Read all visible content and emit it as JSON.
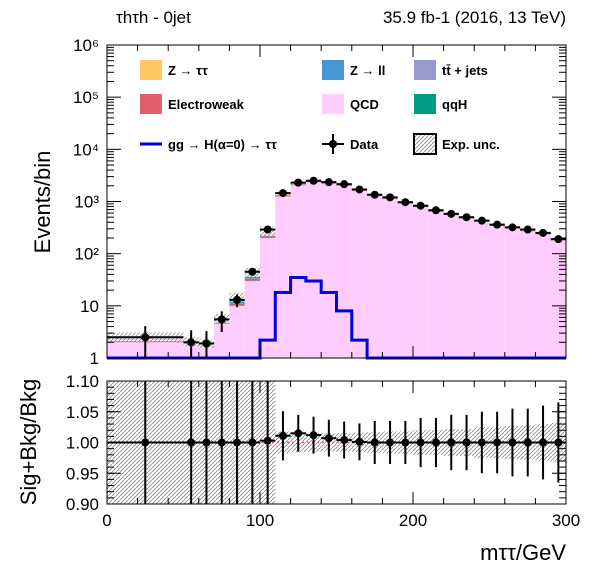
{
  "header": {
    "channel": "τhτh - 0jet",
    "lumi": "35.9 fb-1 (2016, 13 TeV)"
  },
  "colors": {
    "ztt": "#fdc965",
    "zll": "#4596d2",
    "ttbar": "#9a99cc",
    "ewk": "#df5d6d",
    "qcd": "#ffccff",
    "qqh": "#009a82",
    "signal": "#0000d8",
    "data": "#000000",
    "unc": "#c8c8c8"
  },
  "chart_data": [
    {
      "type": "bar",
      "panel": "main",
      "y_scale": "log",
      "ylim": [
        1,
        1000000
      ],
      "xlim": [
        0,
        300
      ],
      "ylabel": "Events/bin",
      "y_tick_labels": [
        "1",
        "10",
        "10²",
        "10³",
        "10⁴",
        "10⁵",
        "10⁶"
      ],
      "x_edges": [
        0,
        50,
        60,
        70,
        80,
        90,
        100,
        110,
        120,
        130,
        140,
        150,
        160,
        170,
        180,
        190,
        200,
        210,
        220,
        230,
        240,
        250,
        260,
        270,
        280,
        290,
        300
      ],
      "stack": [
        {
          "name": "QCD",
          "key": "qcd",
          "values": [
            2.0,
            1.7,
            1.6,
            4.5,
            10,
            30,
            200,
            1250,
            2050,
            2350,
            2200,
            2000,
            1600,
            1280,
            1120,
            920,
            790,
            630,
            550,
            470,
            410,
            340,
            300,
            270,
            230,
            180
          ]
        },
        {
          "name": "Electroweak",
          "key": "ewk",
          "values": [
            0.2,
            0.1,
            0.1,
            0.3,
            1,
            3,
            15,
            40,
            60,
            60,
            55,
            50,
            40,
            35,
            30,
            25,
            20,
            16,
            14,
            12,
            10,
            9,
            8,
            7,
            6,
            5
          ]
        },
        {
          "name": "Z → ll",
          "key": "zll",
          "values": [
            0.3,
            0.2,
            0.1,
            0.3,
            1.5,
            4,
            10,
            20,
            15,
            12,
            8,
            6,
            5,
            4,
            3,
            3,
            2,
            2,
            2,
            1,
            1,
            1,
            1,
            1,
            1,
            1
          ]
        },
        {
          "name": "tt̄ + jets",
          "key": "ttbar",
          "values": [
            0,
            0,
            0,
            0.2,
            0.5,
            2,
            10,
            30,
            35,
            35,
            30,
            25,
            20,
            15,
            12,
            10,
            8,
            6,
            5,
            4,
            3,
            3,
            2,
            2,
            2,
            1
          ]
        },
        {
          "name": "Z → ττ",
          "key": "ztt",
          "values": [
            0.1,
            0.1,
            0.1,
            0.5,
            2,
            6,
            40,
            150,
            150,
            100,
            60,
            40,
            25,
            15,
            10,
            7,
            5,
            4,
            3,
            2,
            2,
            1,
            1,
            1,
            1,
            1
          ]
        },
        {
          "name": "qqH",
          "key": "qqh",
          "values": [
            0,
            0,
            0,
            0,
            0,
            0,
            0,
            1,
            1,
            1,
            0,
            0,
            0,
            0,
            0,
            0,
            0,
            0,
            0,
            0,
            0,
            0,
            0,
            0,
            0,
            0
          ]
        }
      ],
      "signal": {
        "name": "gg → H(α=0) → ττ",
        "key": "signal",
        "values": [
          0,
          0,
          0,
          0,
          0,
          0,
          2.2,
          18,
          35,
          30,
          18,
          8,
          2.2,
          0.9,
          0.9,
          0.9,
          0.9,
          0.9,
          0.9,
          0.9,
          0.9,
          0.9,
          0.9,
          0.9,
          0.9,
          0.9
        ]
      },
      "data": {
        "name": "Data",
        "key": "data",
        "x": [
          25,
          55,
          65,
          75,
          85,
          95,
          105,
          115,
          125,
          135,
          145,
          155,
          165,
          175,
          185,
          195,
          205,
          215,
          225,
          235,
          245,
          255,
          265,
          275,
          285,
          295
        ],
        "y": [
          2.5,
          2.0,
          1.9,
          5.5,
          13,
          45,
          290,
          1450,
          2300,
          2500,
          2350,
          2150,
          1700,
          1350,
          1200,
          970,
          830,
          680,
          580,
          500,
          430,
          360,
          320,
          290,
          250,
          190
        ]
      },
      "legend": {
        "placement": "top",
        "entries": [
          "Z → ττ",
          "Z → ll",
          "tt̄ + jets",
          "Electroweak",
          "QCD",
          "qqH",
          "gg → H(α=0) → ττ",
          "Data",
          "Exp. unc."
        ]
      }
    },
    {
      "type": "scatter",
      "panel": "ratio",
      "ylim": [
        0.9,
        1.1
      ],
      "xlim": [
        0,
        300
      ],
      "ylabel": "Sig+Bkg/Bkg",
      "xlabel": "mττ/GeV",
      "y_tick_labels": [
        "0.90",
        "0.95",
        "1.00",
        "1.05",
        "1.10"
      ],
      "x_tick_labels": [
        "0",
        "100",
        "200",
        "300"
      ],
      "x": [
        25,
        55,
        65,
        75,
        85,
        95,
        105,
        115,
        125,
        135,
        145,
        155,
        165,
        175,
        185,
        195,
        205,
        215,
        225,
        235,
        245,
        255,
        265,
        275,
        285,
        295
      ],
      "y": [
        1.0,
        1.0,
        1.0,
        1.0,
        1.0,
        1.0,
        1.003,
        1.011,
        1.015,
        1.012,
        1.007,
        1.004,
        1.001,
        1.0,
        1.0,
        1.0,
        1.0,
        1.0,
        1.0,
        1.0,
        1.0,
        1.0,
        1.0,
        1.0,
        1.0,
        1.0
      ],
      "yerr": [
        0.2,
        0.2,
        0.2,
        0.2,
        0.2,
        0.2,
        0.2,
        0.04,
        0.03,
        0.03,
        0.03,
        0.03,
        0.03,
        0.035,
        0.035,
        0.035,
        0.04,
        0.04,
        0.045,
        0.045,
        0.05,
        0.05,
        0.055,
        0.055,
        0.06,
        0.065
      ],
      "band": [
        0.2,
        0.2,
        0.2,
        0.2,
        0.2,
        0.2,
        0.2,
        0.018,
        0.016,
        0.015,
        0.015,
        0.015,
        0.016,
        0.017,
        0.018,
        0.018,
        0.02,
        0.02,
        0.022,
        0.022,
        0.025,
        0.025,
        0.027,
        0.028,
        0.03,
        0.032
      ]
    }
  ]
}
